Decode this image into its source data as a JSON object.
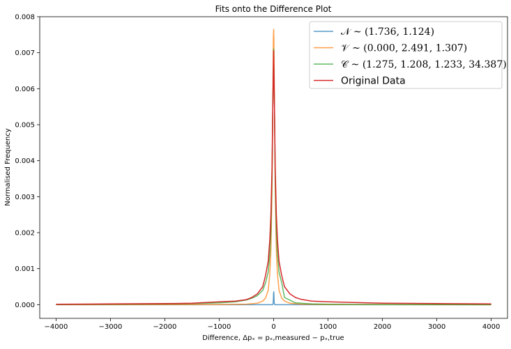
{
  "chart_data": {
    "type": "line",
    "title": "Fits onto the Difference Plot",
    "xlabel": "Difference, Δpₓ = pₓ,measured − pₓ,true",
    "ylabel": "Normalised Frequency",
    "xlim": [
      -4300,
      4300
    ],
    "ylim": [
      -0.00038,
      0.008
    ],
    "xticks": [
      -4000,
      -3000,
      -2000,
      -1000,
      0,
      1000,
      2000,
      3000,
      4000
    ],
    "xtick_labels": [
      "−4000",
      "−3000",
      "−2000",
      "−1000",
      "0",
      "1000",
      "2000",
      "3000",
      "4000"
    ],
    "yticks": [
      0,
      0.001,
      0.002,
      0.003,
      0.004,
      0.005,
      0.006,
      0.007,
      0.008
    ],
    "ytick_labels": [
      "0.000",
      "0.001",
      "0.002",
      "0.003",
      "0.004",
      "0.005",
      "0.006",
      "0.007",
      "0.008"
    ],
    "grid": false,
    "legend_position": "top-right",
    "series": [
      {
        "name": "𝒩 ~ (1.736, 1.124)",
        "color": "#1f77b4",
        "x": [
          -4000,
          -50,
          -20,
          -10,
          -6,
          -4,
          -2,
          0,
          2,
          4,
          6,
          10,
          20,
          50,
          4000
        ],
        "y": [
          0,
          0,
          0,
          2e-05,
          0.0001,
          0.00018,
          0.00028,
          0.00033,
          0.00036,
          0.00032,
          0.00024,
          5e-05,
          0,
          0,
          0
        ]
      },
      {
        "name": "𝒱 ~ (0.000, 2.491, 1.307)",
        "color": "#ff7f0e",
        "x": [
          -4000,
          -1000,
          -500,
          -300,
          -200,
          -150,
          -100,
          -70,
          -50,
          -30,
          -15,
          -5,
          0,
          5,
          15,
          30,
          50,
          70,
          100,
          150,
          200,
          300,
          500,
          1000,
          4000
        ],
        "y": [
          0,
          4e-06,
          1.5e-05,
          4e-05,
          0.0001,
          0.00018,
          0.0004,
          0.00085,
          0.0015,
          0.0032,
          0.0056,
          0.0074,
          0.00765,
          0.0074,
          0.0056,
          0.0032,
          0.0015,
          0.00085,
          0.0004,
          0.00018,
          0.0001,
          4e-05,
          1.5e-05,
          4e-06,
          0
        ]
      },
      {
        "name": "𝒞 ~ (1.275, 1.208, 1.233, 34.387)",
        "color": "#2ca02c",
        "x": [
          -4000,
          -3000,
          -2000,
          -1500,
          -1000,
          -700,
          -500,
          -400,
          -300,
          -200,
          -150,
          -100,
          -70,
          -50,
          -30,
          -15,
          0,
          15,
          30,
          50,
          70,
          100,
          150,
          200,
          400,
          700,
          1000,
          2000,
          4000
        ],
        "y": [
          5e-06,
          1e-05,
          2e-05,
          3e-05,
          5e-05,
          8e-05,
          0.00013,
          0.00018,
          0.00025,
          0.0004,
          0.0006,
          0.0009,
          0.0014,
          0.002,
          0.0035,
          0.0055,
          0.0071,
          0.0055,
          0.0035,
          0.002,
          0.0014,
          0.0009,
          0.0006,
          0.0002,
          5e-05,
          2e-05,
          1e-05,
          5e-06,
          0
        ]
      },
      {
        "name": "Original Data",
        "color": "#d62728",
        "x": [
          -4000,
          -3000,
          -2000,
          -1500,
          -1000,
          -700,
          -500,
          -400,
          -300,
          -200,
          -150,
          -100,
          -70,
          -50,
          -30,
          -15,
          0,
          15,
          30,
          50,
          70,
          100,
          150,
          200,
          300,
          400,
          500,
          700,
          1000,
          2000,
          3000,
          4000
        ],
        "y": [
          1e-05,
          2e-05,
          3e-05,
          4e-05,
          8e-05,
          0.0001,
          0.00014,
          0.0002,
          0.0003,
          0.0005,
          0.0008,
          0.0012,
          0.0018,
          0.0025,
          0.0038,
          0.0055,
          0.00705,
          0.0055,
          0.0038,
          0.0025,
          0.0018,
          0.0012,
          0.0008,
          0.0005,
          0.0003,
          0.0002,
          0.00015,
          0.0001,
          8e-05,
          4e-05,
          3e-05,
          2e-05
        ]
      }
    ]
  }
}
